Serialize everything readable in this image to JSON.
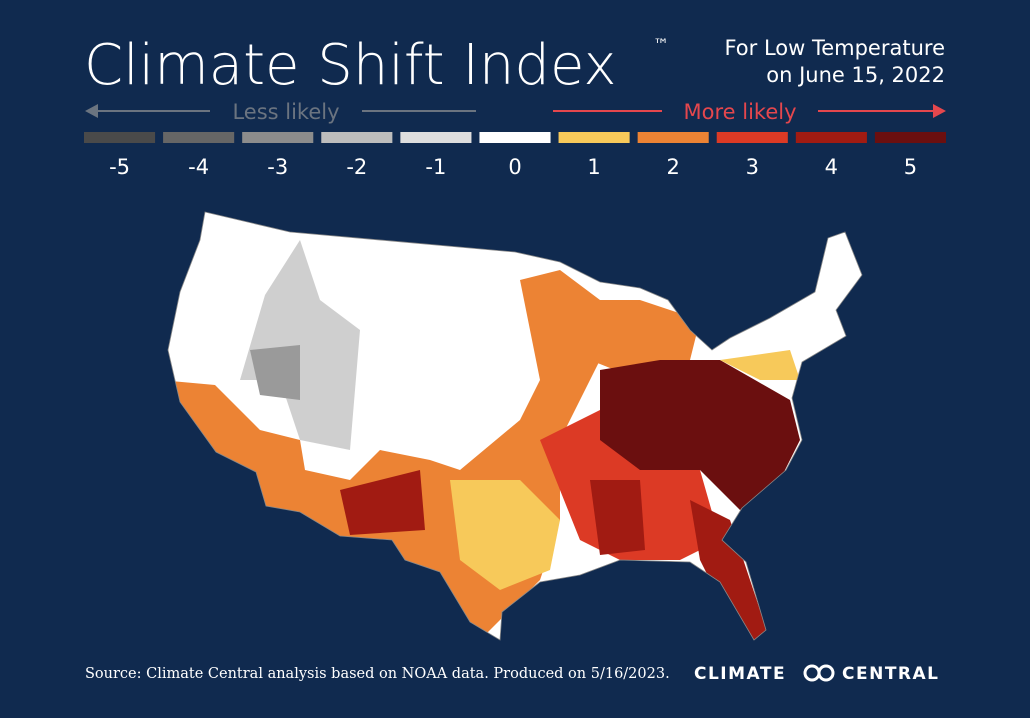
{
  "header": {
    "title": "Climate Shift Index",
    "trademark": "™",
    "subtitle_line1": "For Low Temperature",
    "subtitle_line2": "on June 15, 2022"
  },
  "legend": {
    "less_label": "Less likely",
    "more_label": "More likely",
    "levels": [
      {
        "value": -5,
        "color": "#4a4a4a"
      },
      {
        "value": -4,
        "color": "#666666"
      },
      {
        "value": -3,
        "color": "#8c8c8c"
      },
      {
        "value": -2,
        "color": "#bdbdbd"
      },
      {
        "value": -1,
        "color": "#dedede"
      },
      {
        "value": 0,
        "color": "#ffffff"
      },
      {
        "value": 1,
        "color": "#f7c95a"
      },
      {
        "value": 2,
        "color": "#ec8334"
      },
      {
        "value": 3,
        "color": "#dc3a25"
      },
      {
        "value": 4,
        "color": "#a11b12"
      },
      {
        "value": 5,
        "color": "#6b0f0f"
      }
    ]
  },
  "footer": {
    "source": "Source: Climate Central analysis based on NOAA data. Produced on 5/16/2023.",
    "brand_left": "CLIMATE",
    "brand_right": "CENTRAL"
  }
}
